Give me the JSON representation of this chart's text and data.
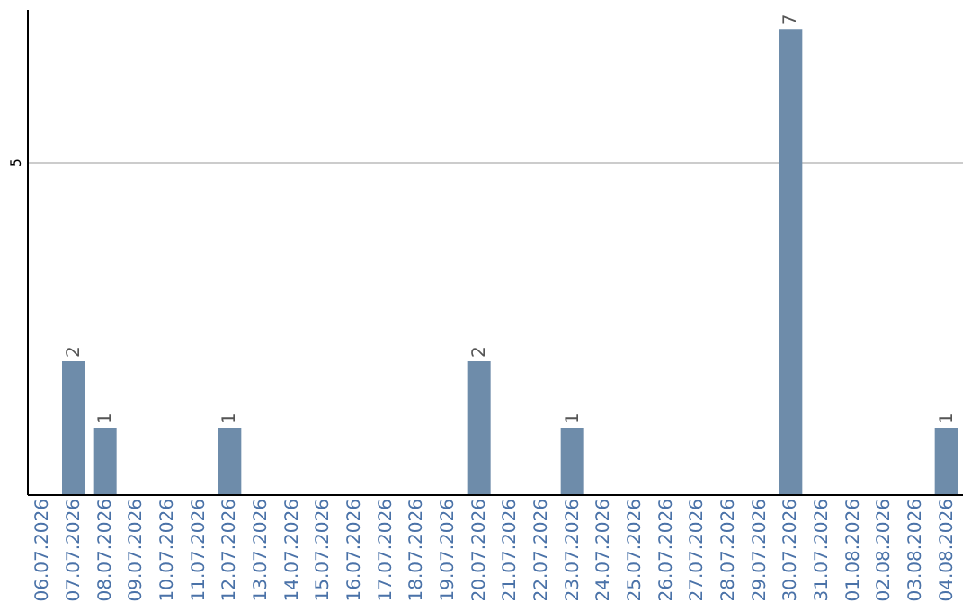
{
  "chart_data": {
    "type": "bar",
    "categories": [
      "06.07.2026",
      "07.07.2026",
      "08.07.2026",
      "09.07.2026",
      "10.07.2026",
      "11.07.2026",
      "12.07.2026",
      "13.07.2026",
      "14.07.2026",
      "15.07.2026",
      "16.07.2026",
      "17.07.2026",
      "18.07.2026",
      "19.07.2026",
      "20.07.2026",
      "21.07.2026",
      "22.07.2026",
      "23.07.2026",
      "24.07.2026",
      "25.07.2026",
      "26.07.2026",
      "27.07.2026",
      "28.07.2026",
      "29.07.2026",
      "30.07.2026",
      "31.07.2026",
      "01.08.2026",
      "02.08.2026",
      "03.08.2026",
      "04.08.2026"
    ],
    "values": [
      null,
      2,
      1,
      null,
      null,
      null,
      1,
      null,
      null,
      null,
      null,
      null,
      null,
      null,
      2,
      null,
      null,
      1,
      null,
      null,
      null,
      null,
      null,
      null,
      7,
      null,
      null,
      null,
      null,
      1
    ],
    "color": "#6e8caa",
    "ylim": [
      0,
      7.3
    ],
    "yticks": [
      5
    ],
    "grid": "y",
    "data_labels": true
  }
}
